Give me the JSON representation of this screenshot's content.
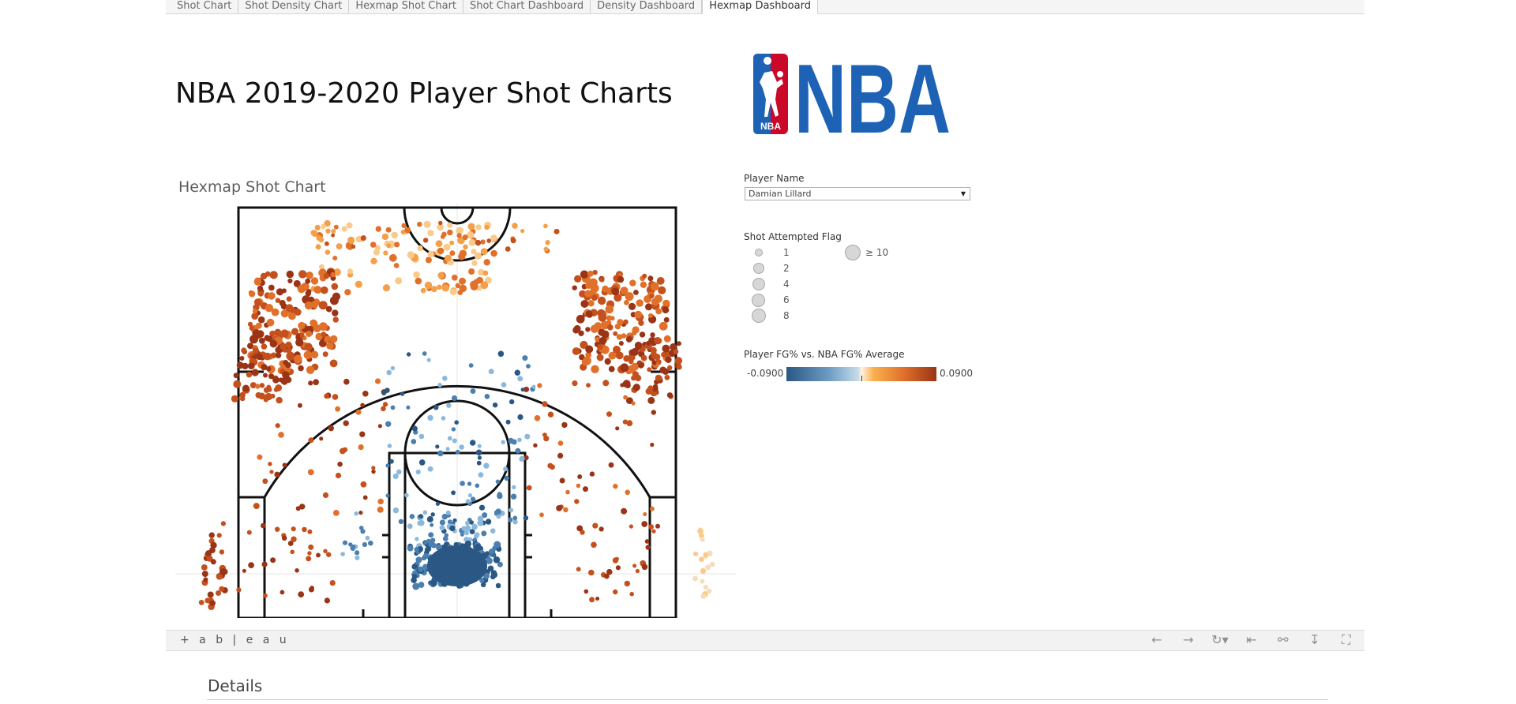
{
  "tabs": [
    {
      "label": "Shot Chart",
      "active": false
    },
    {
      "label": "Shot Density Chart",
      "active": false
    },
    {
      "label": "Hexmap Shot Chart",
      "active": false
    },
    {
      "label": "Shot Chart Dashboard",
      "active": false
    },
    {
      "label": "Density Dashboard",
      "active": false
    },
    {
      "label": "Hexmap Dashboard",
      "active": true
    }
  ],
  "dashboard": {
    "title": "NBA 2019-2020 Player Shot Charts",
    "logo": {
      "text": "NBA",
      "badge_text": "NBA",
      "colors": {
        "blue": "#1d62b5",
        "red": "#c9082a"
      }
    }
  },
  "chart": {
    "title": "Hexmap Shot Chart"
  },
  "filters": {
    "player_name": {
      "label": "Player Name",
      "value": "Damian Lillard"
    }
  },
  "legends": {
    "size": {
      "label": "Shot Attempted Flag",
      "items": [
        "1",
        "2",
        "4",
        "6",
        "8",
        "≥ 10"
      ]
    },
    "color": {
      "label": "Player FG% vs. NBA FG% Average",
      "min": "-0.0900",
      "max": "0.0900",
      "colors": {
        "low": "#2a5783",
        "mid": "#fbb04e",
        "high": "#9a3416"
      }
    }
  },
  "toolbar": {
    "brand": "+ a b | e a u",
    "icons": [
      "undo-icon",
      "redo-icon",
      "revert-icon",
      "reset-icon",
      "share-icon",
      "download-icon",
      "fullscreen-icon"
    ]
  },
  "details": {
    "title": "Details"
  }
}
